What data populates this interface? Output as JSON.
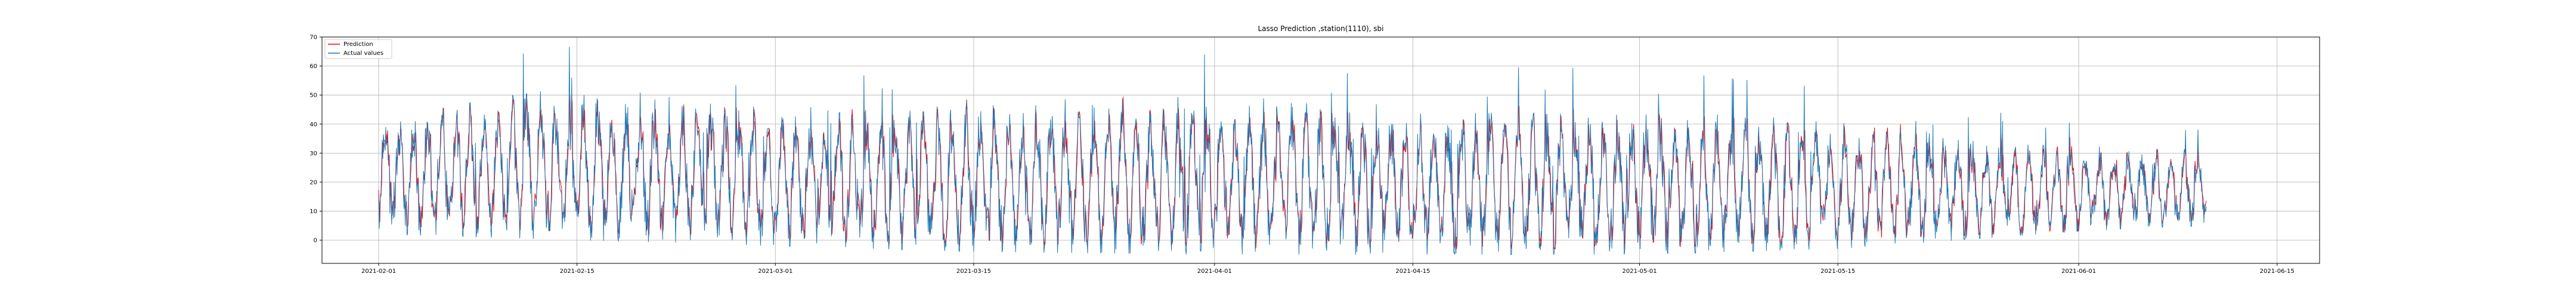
{
  "chart_data": {
    "type": "line",
    "title": "Lasso Prediction ,station(1110), sbi",
    "xlabel": "",
    "ylabel": "",
    "x_range": [
      "2021-01-28",
      "2021-06-18"
    ],
    "ylim": [
      -8,
      70
    ],
    "x_ticks": [
      "2021-02-01",
      "2021-02-15",
      "2021-03-01",
      "2021-03-15",
      "2021-04-01",
      "2021-04-15",
      "2021-05-01",
      "2021-05-15",
      "2021-06-01",
      "2021-06-15"
    ],
    "y_ticks": [
      0,
      10,
      20,
      30,
      40,
      50,
      60,
      70
    ],
    "grid": true,
    "legend_position": "upper-left",
    "data_start": "2021-02-01",
    "data_end": "2021-06-10",
    "series": [
      {
        "name": "Prediction",
        "color": "#ff0000",
        "sampling": "hourly",
        "start": "2021-02-01T00:00",
        "end": "2021-06-10T00:00",
        "envelope_dates": [
          "2021-02-01",
          "2021-02-15",
          "2021-03-01",
          "2021-03-15",
          "2021-04-01",
          "2021-04-15",
          "2021-05-01",
          "2021-05-15",
          "2021-06-01",
          "2021-06-10"
        ],
        "envelope_min": [
          5,
          3,
          0,
          -2,
          -3,
          -3,
          -3,
          0,
          3,
          7
        ],
        "envelope_max": [
          45,
          50,
          47,
          50,
          52,
          48,
          44,
          40,
          40,
          35
        ]
      },
      {
        "name": "Actual values",
        "color": "#1f77b4",
        "sampling": "hourly",
        "start": "2021-02-01T00:00",
        "end": "2021-06-10T00:00",
        "envelope_dates": [
          "2021-02-01",
          "2021-02-15",
          "2021-03-01",
          "2021-03-15",
          "2021-04-01",
          "2021-04-15",
          "2021-05-01",
          "2021-05-15",
          "2021-06-01",
          "2021-06-10"
        ],
        "envelope_min": [
          2,
          0,
          -2,
          -4,
          -5,
          -5,
          -5,
          -3,
          3,
          5
        ],
        "envelope_max": [
          57,
          67,
          58,
          62,
          64,
          60,
          59,
          52,
          40,
          38
        ]
      }
    ]
  }
}
